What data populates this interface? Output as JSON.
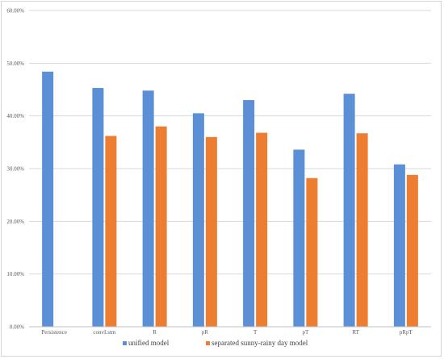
{
  "chart_data": {
    "type": "bar",
    "title": "",
    "xlabel": "",
    "ylabel": "",
    "ylim": [
      0,
      60
    ],
    "y_tick_values": [
      0,
      10,
      20,
      30,
      40,
      50,
      60
    ],
    "y_tick_labels": [
      "0.00%",
      "10.00%",
      "20.00%",
      "30.00%",
      "40.00%",
      "50.00%",
      "60.00%"
    ],
    "grid": true,
    "legend_position": "bottom",
    "categories": [
      "Persistence",
      "convLstm",
      "R",
      "pR",
      "T",
      "pT",
      "RT",
      "pRpT"
    ],
    "series": [
      {
        "name": "unified model",
        "color": "#5b8fd6",
        "values": [
          48.4,
          45.3,
          44.8,
          40.5,
          43.0,
          33.6,
          44.2,
          30.8
        ]
      },
      {
        "name": "separated sunny-rainy day model",
        "color": "#ed7d31",
        "values": [
          null,
          36.2,
          38.0,
          36.0,
          36.8,
          28.2,
          36.7,
          28.8
        ]
      }
    ]
  }
}
